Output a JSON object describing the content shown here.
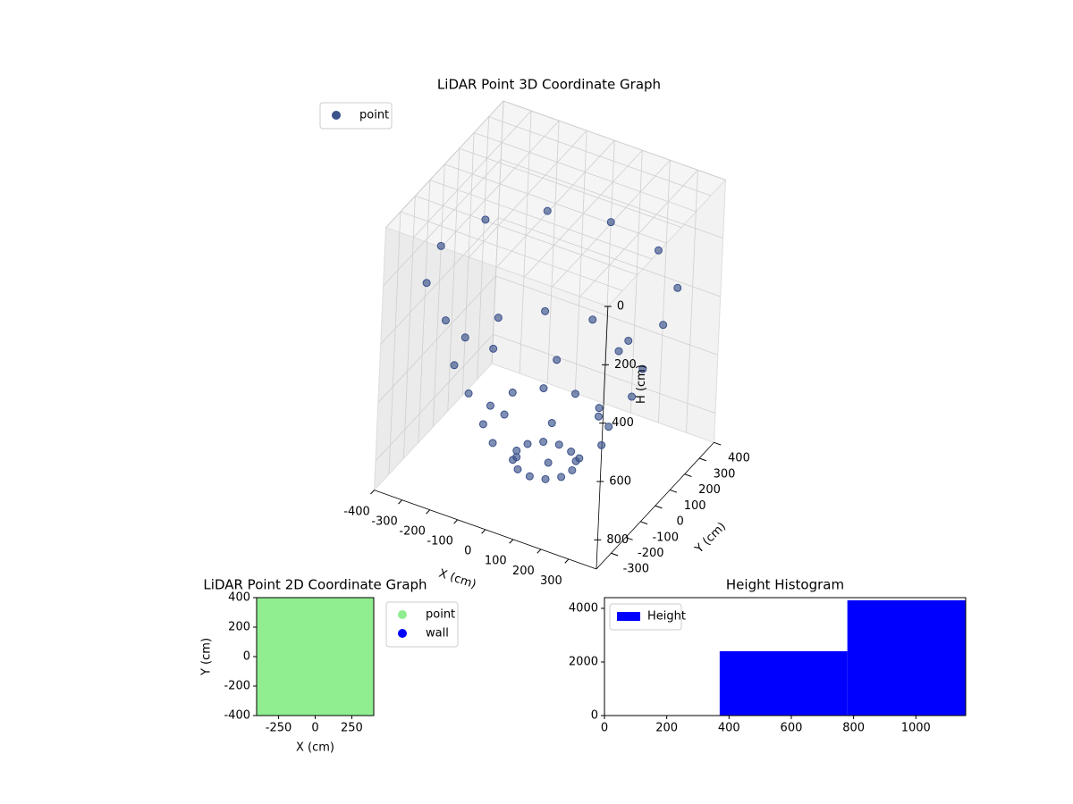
{
  "chart_data": [
    {
      "type": "scatter3d",
      "title": "LiDAR Point 3D Coordinate Graph",
      "xlabel": "X (cm)",
      "ylabel": "Y (cm)",
      "zlabel": "H (cm)",
      "xlim": [
        -400,
        400
      ],
      "ylim": [
        -400,
        400
      ],
      "zlim": [
        0,
        900
      ],
      "z_inverted": true,
      "xticks": [
        -400,
        -300,
        -200,
        -100,
        0,
        100,
        200,
        300
      ],
      "yticks": [
        -300,
        -200,
        -100,
        0,
        100,
        200,
        300,
        400
      ],
      "zticks": [
        0,
        200,
        400,
        600,
        800
      ],
      "grid": true,
      "legend": "upper left",
      "series": [
        {
          "name": "point",
          "color": "#3b528b",
          "x": [
            100,
            87,
            50,
            0,
            -50,
            -87,
            -100,
            -87,
            -50,
            0,
            50,
            87,
            200,
            173,
            100,
            0,
            -100,
            -173,
            -200,
            -173,
            -100,
            0,
            100,
            173,
            300,
            260,
            150,
            0,
            -150,
            -260,
            -300,
            -260,
            -150,
            0,
            150,
            260,
            400,
            346,
            200,
            0,
            -200,
            -346,
            -400,
            -346,
            -200,
            0,
            200,
            346
          ],
          "y": [
            0,
            50,
            87,
            100,
            87,
            50,
            0,
            -50,
            -87,
            -100,
            -87,
            -50,
            0,
            100,
            173,
            200,
            173,
            100,
            0,
            -100,
            -173,
            -200,
            -173,
            -100,
            0,
            150,
            260,
            300,
            260,
            150,
            0,
            -150,
            -260,
            -300,
            -260,
            -150,
            0,
            200,
            346,
            400,
            346,
            200,
            0,
            -200,
            -346,
            -400,
            -346,
            -200
          ],
          "z": [
            880,
            880,
            880,
            880,
            880,
            880,
            880,
            880,
            880,
            880,
            880,
            880,
            760,
            760,
            760,
            760,
            760,
            760,
            760,
            760,
            760,
            760,
            760,
            760,
            560,
            560,
            560,
            560,
            560,
            560,
            560,
            560,
            560,
            560,
            560,
            560,
            280,
            280,
            280,
            280,
            280,
            280,
            280,
            280,
            280,
            280,
            280,
            280
          ]
        }
      ]
    },
    {
      "type": "scatter",
      "title": "LiDAR Point 2D Coordinate Graph",
      "xlabel": "X (cm)",
      "ylabel": "Y (cm)",
      "xlim": [
        -400,
        400
      ],
      "ylim": [
        -400,
        400
      ],
      "xticks": [
        -250,
        0,
        250
      ],
      "yticks": [
        -400,
        -200,
        0,
        200,
        400
      ],
      "legend": "outside",
      "series": [
        {
          "name": "point",
          "color": "#90ee90",
          "x": [
            -400,
            -300,
            -200,
            -100,
            0,
            100,
            200,
            300,
            400,
            -400,
            -300,
            -200,
            -100,
            0,
            100,
            200,
            300,
            400,
            -400,
            -300,
            -200,
            -100,
            0,
            100,
            200,
            300,
            400,
            -400,
            -300,
            -200,
            -100,
            0,
            100,
            200,
            300,
            400,
            -400,
            -300,
            -200,
            -100,
            0,
            100,
            200,
            300,
            400,
            -400,
            -300,
            -200,
            -100,
            0,
            100,
            200,
            300,
            400,
            -400,
            -300,
            -200,
            -100,
            0,
            100,
            200,
            300,
            400,
            -400,
            -300,
            -200,
            -100,
            0,
            100,
            200,
            300,
            400,
            -400,
            -300,
            -200,
            -100,
            0,
            100,
            200,
            300,
            400
          ],
          "y": [
            -400,
            -400,
            -400,
            -400,
            -400,
            -400,
            -400,
            -400,
            -400,
            -300,
            -300,
            -300,
            -300,
            -300,
            -300,
            -300,
            -300,
            -300,
            -200,
            -200,
            -200,
            -200,
            -200,
            -200,
            -200,
            -200,
            -200,
            -100,
            -100,
            -100,
            -100,
            -100,
            -100,
            -100,
            -100,
            -100,
            0,
            0,
            0,
            0,
            0,
            0,
            0,
            0,
            0,
            100,
            100,
            100,
            100,
            100,
            100,
            100,
            100,
            100,
            200,
            200,
            200,
            200,
            200,
            200,
            200,
            200,
            200,
            300,
            300,
            300,
            300,
            300,
            300,
            300,
            300,
            300,
            400,
            400,
            400,
            400,
            400,
            400,
            400,
            400,
            400
          ]
        },
        {
          "name": "wall",
          "color": "#0000ff",
          "x": [],
          "y": []
        }
      ]
    },
    {
      "type": "histogram",
      "title": "Height Histogram",
      "bins": [
        0,
        370,
        780,
        1160
      ],
      "counts": [
        0,
        2400,
        4300
      ],
      "xlim": [
        0,
        1160
      ],
      "ylim": [
        0,
        4400
      ],
      "xticks": [
        0,
        200,
        400,
        600,
        800,
        1000
      ],
      "yticks": [
        0,
        2000,
        4000
      ],
      "legend": "upper left",
      "series_name": "Height",
      "color": "#0000ff"
    }
  ]
}
